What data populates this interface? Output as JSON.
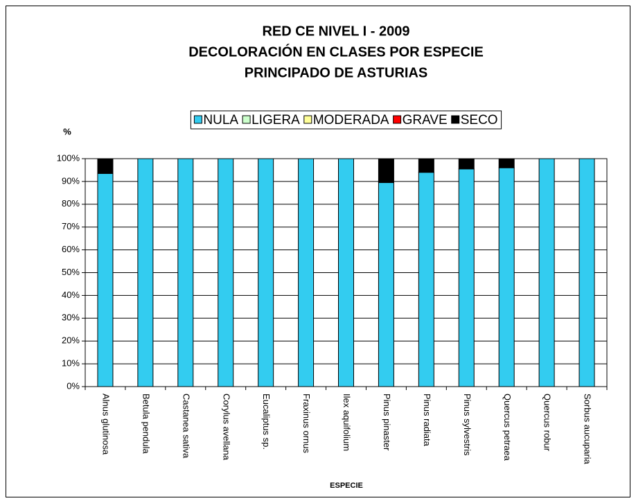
{
  "chart_data": {
    "type": "stacked_bar",
    "title": [
      "RED CE NIVEL I - 2009",
      "DECOLORACIÓN EN CLASES POR ESPECIE",
      "PRINCIPADO DE ASTURIAS"
    ],
    "y_label": "%",
    "x_label": "ESPECIE",
    "categories": [
      "Alnus glutinosa",
      "Betula pendula",
      "Castanea sativa",
      "Corylus avellana",
      "Eucaliptus sp.",
      "Fraxinus ornus",
      "Ilex aquifolium",
      "Pinus pinaster",
      "Pinus radiata",
      "Pinus sylvestris",
      "Quercus petraea",
      "Quercus robur",
      "Sorbus aucuparia"
    ],
    "series": [
      {
        "name": "NULA",
        "color": "#33ccf0",
        "values": [
          93.5,
          100,
          100,
          100,
          100,
          100,
          100,
          89.5,
          94,
          95.5,
          96,
          100,
          100
        ]
      },
      {
        "name": "LIGERA",
        "color": "#ccffcc",
        "values": [
          0,
          0,
          0,
          0,
          0,
          0,
          0,
          0,
          0,
          0,
          0,
          0,
          0
        ]
      },
      {
        "name": "MODERADA",
        "color": "#ffff99",
        "values": [
          0,
          0,
          0,
          0,
          0,
          0,
          0,
          0,
          0,
          0,
          0,
          0,
          0
        ]
      },
      {
        "name": "GRAVE",
        "color": "#ff0000",
        "values": [
          0,
          0,
          0,
          0,
          0,
          0,
          0,
          0,
          0,
          0,
          0,
          0,
          0
        ]
      },
      {
        "name": "SECO",
        "color": "#000000",
        "values": [
          6.5,
          0,
          0,
          0,
          0,
          0,
          0,
          10.5,
          6,
          4.5,
          4,
          0,
          0
        ]
      }
    ],
    "ylim": [
      0,
      100
    ],
    "yticks": [
      {
        "value": 0,
        "label": "0%"
      },
      {
        "value": 10,
        "label": "10%"
      },
      {
        "value": 20,
        "label": "20%"
      },
      {
        "value": 30,
        "label": "30%"
      },
      {
        "value": 40,
        "label": "40%"
      },
      {
        "value": 50,
        "label": "50%"
      },
      {
        "value": 60,
        "label": "60%"
      },
      {
        "value": 70,
        "label": "70%"
      },
      {
        "value": 80,
        "label": "80%"
      },
      {
        "value": 90,
        "label": "90%"
      },
      {
        "value": 100,
        "label": "100%"
      }
    ],
    "grid": true,
    "legend": "top"
  }
}
